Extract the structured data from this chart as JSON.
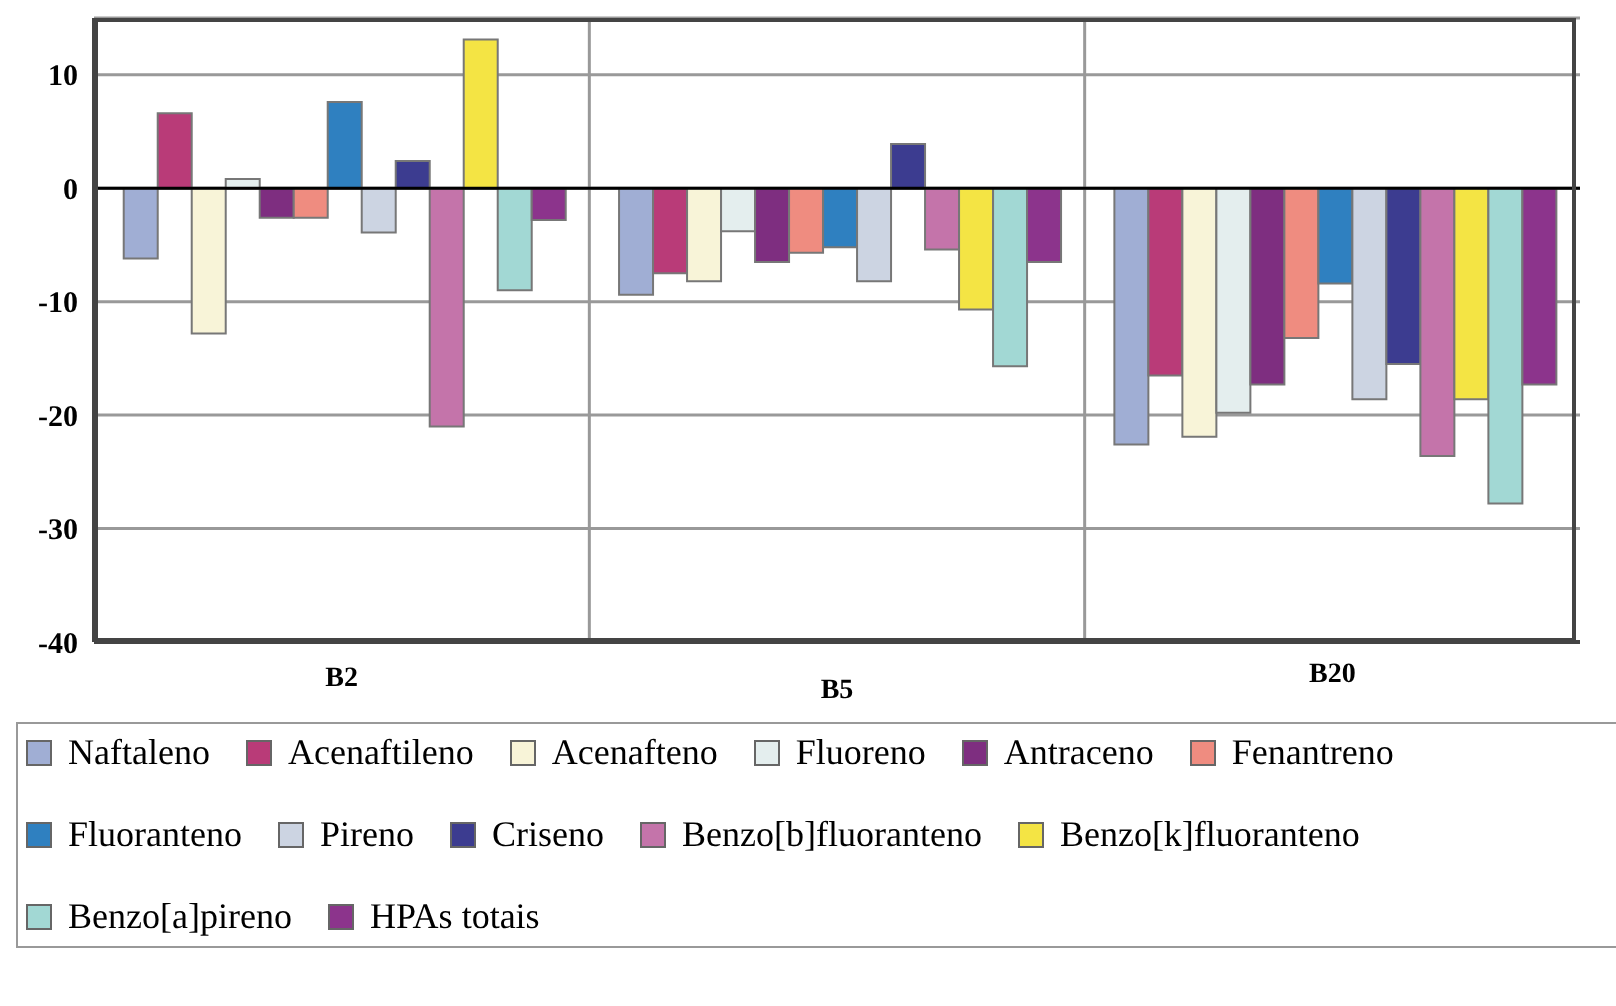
{
  "chart_data": {
    "type": "bar",
    "categories": [
      "B2",
      "B5",
      "B20"
    ],
    "ylim": [
      -40,
      15
    ],
    "yticks": [
      -40,
      -30,
      -20,
      -10,
      0,
      10
    ],
    "grid": true,
    "legend": "bottom",
    "series": [
      {
        "name": "Naftaleno",
        "color": "#a0aed4",
        "values": [
          -6.2,
          -9.4,
          -22.6
        ]
      },
      {
        "name": "Acenaftileno",
        "color": "#b93b78",
        "values": [
          6.6,
          -7.5,
          -16.5
        ]
      },
      {
        "name": "Acenafteno",
        "color": "#f8f4d8",
        "values": [
          -12.8,
          -8.2,
          -21.9
        ]
      },
      {
        "name": "Fluoreno",
        "color": "#e4eeee",
        "values": [
          0.8,
          -3.8,
          -19.8
        ]
      },
      {
        "name": "Antraceno",
        "color": "#7e2e80",
        "values": [
          -2.6,
          -6.5,
          -17.3
        ]
      },
      {
        "name": "Fenantreno",
        "color": "#ef8c80",
        "values": [
          -2.6,
          -5.7,
          -13.2
        ]
      },
      {
        "name": "Fluoranteno",
        "color": "#2f80c0",
        "values": [
          7.6,
          -5.2,
          -8.4
        ]
      },
      {
        "name": "Pireno",
        "color": "#ccd4e2",
        "values": [
          -3.9,
          -8.2,
          -18.6
        ]
      },
      {
        "name": "Criseno",
        "color": "#3c3c90",
        "values": [
          2.4,
          3.9,
          -15.5
        ]
      },
      {
        "name": "Benzo[b]fluoranteno",
        "color": "#c474aa",
        "values": [
          -21,
          -5.4,
          -23.6
        ]
      },
      {
        "name": "Benzo[k]fluoranteno",
        "color": "#f4e444",
        "values": [
          13.1,
          -10.7,
          -18.6
        ]
      },
      {
        "name": "Benzo[a]pireno",
        "color": "#a2d8d4",
        "values": [
          -9,
          -15.7,
          -27.8
        ]
      },
      {
        "name": "HPAs totais",
        "color": "#8c348c",
        "values": [
          -2.8,
          -6.5,
          -17.3
        ]
      }
    ]
  }
}
